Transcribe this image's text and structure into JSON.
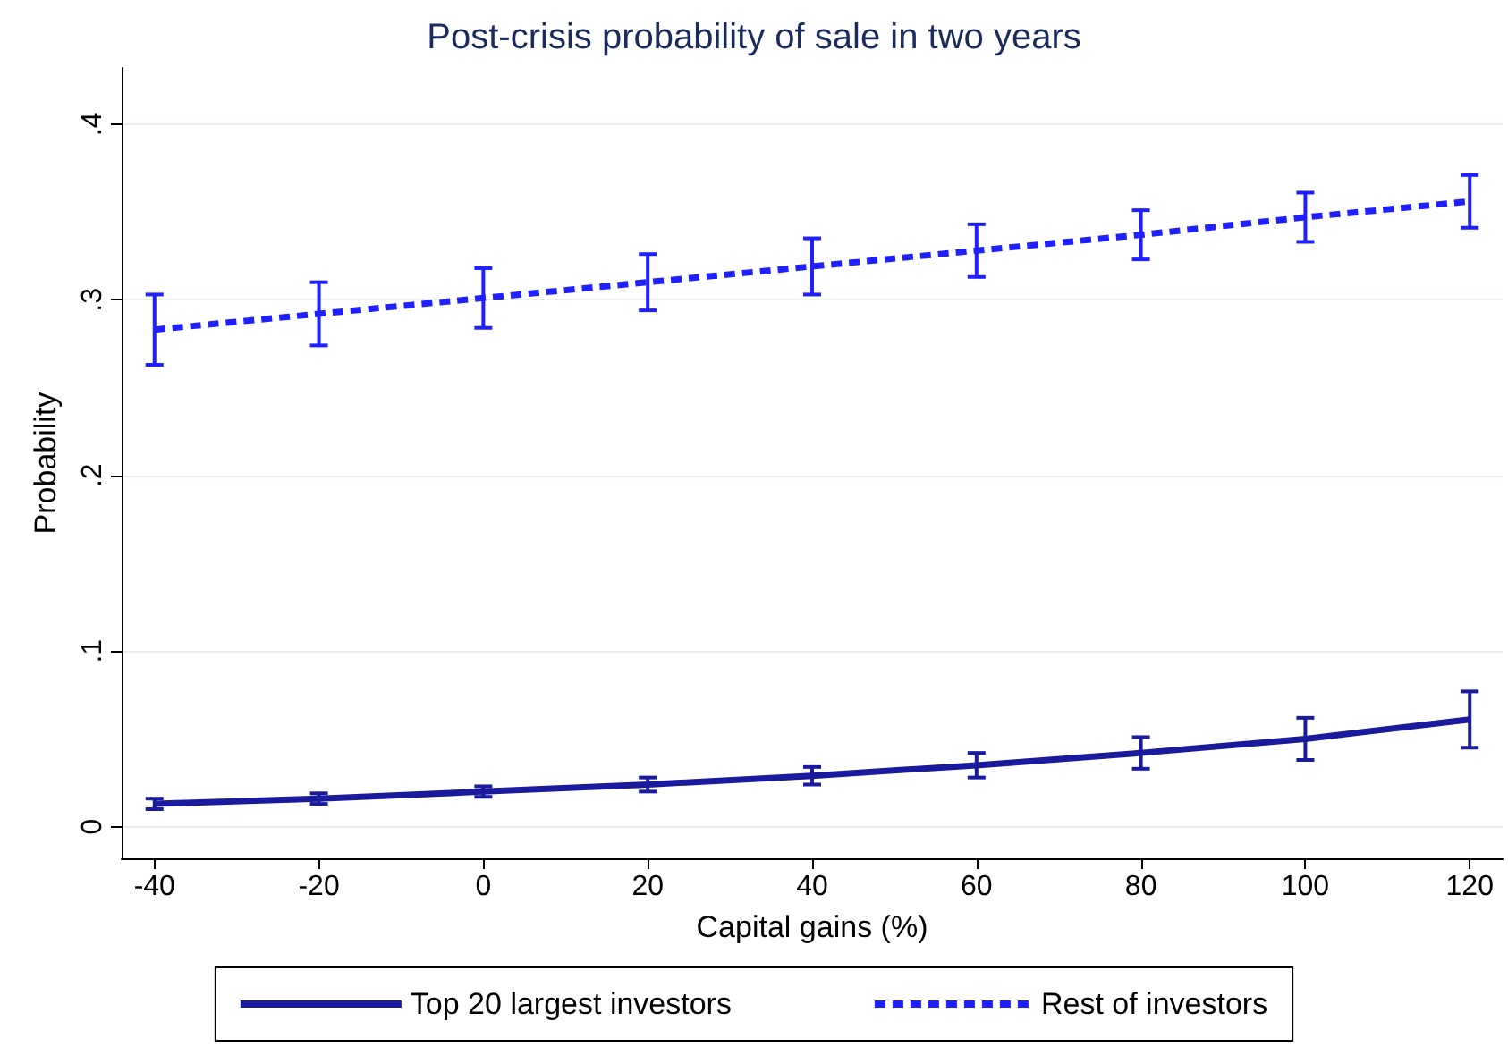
{
  "chart_data": {
    "type": "line",
    "title": "Post-crisis probability of sale in two years",
    "xlabel": "Capital gains (%)",
    "ylabel": "Probability",
    "x": [
      -40,
      -20,
      0,
      20,
      40,
      60,
      80,
      100,
      120
    ],
    "series": [
      {
        "name": "Top 20 largest investors",
        "color": "#1a1a9c",
        "line_style": "solid",
        "values": [
          0.013,
          0.016,
          0.02,
          0.024,
          0.029,
          0.035,
          0.042,
          0.05,
          0.061
        ],
        "errors": [
          0.003,
          0.003,
          0.003,
          0.004,
          0.005,
          0.007,
          0.009,
          0.012,
          0.016
        ]
      },
      {
        "name": "Rest of investors",
        "color": "#1f1fff",
        "line_style": "dashed",
        "values": [
          0.283,
          0.292,
          0.301,
          0.31,
          0.319,
          0.328,
          0.337,
          0.347,
          0.356
        ],
        "errors": [
          0.02,
          0.018,
          0.017,
          0.016,
          0.016,
          0.015,
          0.014,
          0.014,
          0.015
        ]
      }
    ],
    "xlim": [
      -44,
      124
    ],
    "xticks": [
      -40,
      -20,
      0,
      20,
      40,
      60,
      80,
      100,
      120
    ],
    "ylim": [
      -0.018,
      0.432
    ],
    "yticks": [
      0,
      {
        "value": 0.1,
        "label": ".1"
      },
      {
        "value": 0.2,
        "label": ".2"
      },
      {
        "value": 0.3,
        "label": ".3"
      },
      {
        "value": 0.4,
        "label": ".4"
      }
    ],
    "grid": "y",
    "legend": "bottom",
    "marker": "none"
  }
}
